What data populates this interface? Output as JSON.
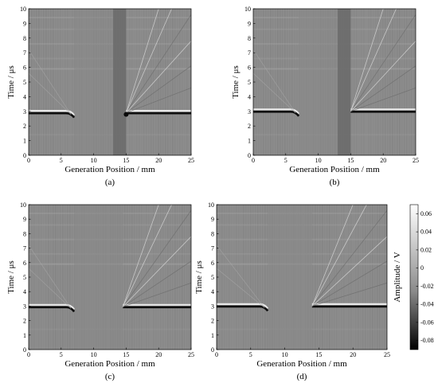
{
  "chart_data": [
    {
      "id": "a",
      "type": "heatmap",
      "panel_label": "(a)",
      "xlabel": "Generation Position / mm",
      "ylabel": "Time / μs",
      "xlim": [
        0,
        25
      ],
      "ylim": [
        0,
        10
      ],
      "xticks": [
        "0",
        "5",
        "10",
        "15",
        "20",
        "25"
      ],
      "yticks": [
        "0",
        "1",
        "2",
        "3",
        "4",
        "5",
        "6",
        "7",
        "8",
        "9",
        "10"
      ],
      "features": {
        "surface_wave_time_us": 2.9,
        "left_band_x_mm": [
          0,
          7
        ],
        "gap_x_mm": [
          7,
          15
        ],
        "right_band_x_mm": [
          15,
          25
        ],
        "defect_dark_strip_x_mm": [
          13,
          15
        ],
        "fan_origin": [
          15,
          2.9
        ]
      }
    },
    {
      "id": "b",
      "type": "heatmap",
      "panel_label": "(b)",
      "xlabel": "Generation Position / mm",
      "ylabel": "Time / μs",
      "xlim": [
        0,
        25
      ],
      "ylim": [
        0,
        10
      ],
      "xticks": [
        "0",
        "5",
        "10",
        "15",
        "20",
        "25"
      ],
      "yticks": [
        "0",
        "1",
        "2",
        "3",
        "4",
        "5",
        "6",
        "7",
        "8",
        "9",
        "10"
      ],
      "features": {
        "surface_wave_time_us": 3.0,
        "left_band_x_mm": [
          0,
          7
        ],
        "gap_x_mm": [
          7,
          15
        ],
        "right_band_x_mm": [
          15,
          25
        ],
        "defect_dark_strip_x_mm": [
          13,
          15
        ],
        "fan_origin": [
          15,
          3.0
        ]
      }
    },
    {
      "id": "c",
      "type": "heatmap",
      "panel_label": "(c)",
      "xlabel": "Generation Position / mm",
      "ylabel": "Time / μs",
      "xlim": [
        0,
        25
      ],
      "ylim": [
        0,
        10
      ],
      "xticks": [
        "0",
        "5",
        "10",
        "15",
        "20",
        "25"
      ],
      "yticks": [
        "0",
        "1",
        "2",
        "3",
        "4",
        "5",
        "6",
        "7",
        "8",
        "9",
        "10"
      ],
      "features": {
        "surface_wave_time_us": 2.95,
        "left_band_x_mm": [
          0,
          7
        ],
        "gap_x_mm": [
          7,
          14.5
        ],
        "right_band_x_mm": [
          14.5,
          25
        ],
        "defect_dark_strip_x_mm": null,
        "fan_origin": [
          14.5,
          2.95
        ]
      }
    },
    {
      "id": "d",
      "type": "heatmap",
      "panel_label": "(d)",
      "xlabel": "Generation Position / mm",
      "ylabel": "Time / μs",
      "xlim": [
        0,
        25
      ],
      "ylim": [
        0,
        10
      ],
      "xticks": [
        "0",
        "5",
        "10",
        "15",
        "20",
        "25"
      ],
      "yticks": [
        "0",
        "1",
        "2",
        "3",
        "4",
        "5",
        "6",
        "7",
        "8",
        "9",
        "10"
      ],
      "features": {
        "surface_wave_time_us": 3.0,
        "left_band_x_mm": [
          0,
          7.5
        ],
        "gap_x_mm": [
          7.5,
          14
        ],
        "right_band_x_mm": [
          14,
          25
        ],
        "defect_dark_strip_x_mm": null,
        "fan_origin": [
          14,
          3.0
        ]
      }
    }
  ],
  "colorbar": {
    "label": "Amplitude / V",
    "ticks": [
      "0.06",
      "0.04",
      "0.02",
      "0",
      "-0.02",
      "-0.04",
      "-0.06",
      "-0.08"
    ],
    "tick_values": [
      0.06,
      0.04,
      0.02,
      0,
      -0.02,
      -0.04,
      -0.06,
      -0.08
    ],
    "range": [
      -0.09,
      0.07
    ],
    "colors": {
      "max": "#ffffff",
      "min": "#000000",
      "mid": "#8a8a8a"
    }
  }
}
